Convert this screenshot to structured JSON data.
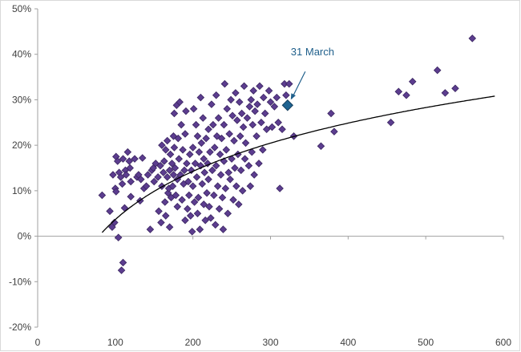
{
  "chart_data": {
    "type": "scatter",
    "title": "",
    "xlabel": "",
    "ylabel": "",
    "xlim": [
      0,
      600
    ],
    "ylim": [
      -20,
      50
    ],
    "x_ticks": [
      0,
      100,
      200,
      300,
      400,
      500,
      600
    ],
    "y_ticks": [
      -20,
      -10,
      0,
      10,
      20,
      30,
      40,
      50
    ],
    "x_tick_labels": [
      "0",
      "100",
      "200",
      "300",
      "400",
      "500",
      "600"
    ],
    "y_tick_labels": [
      "-20%",
      "-10%",
      "0%",
      "10%",
      "20%",
      "30%",
      "40%",
      "50%"
    ],
    "grid": false,
    "legend": "none",
    "colors": {
      "points": "#5c3d8f",
      "point_stroke": "#3a2560",
      "highlight": "#1f6391",
      "trendline": "#000000",
      "annotation": "#1f5f8b",
      "axis": "#a0a0a0"
    },
    "series": [
      {
        "points": [
          [
            83,
            9
          ],
          [
            93,
            5.5
          ],
          [
            96,
            2
          ],
          [
            97,
            13.5
          ],
          [
            99,
            3
          ],
          [
            100,
            10.5
          ],
          [
            101,
            9.8
          ],
          [
            101,
            17.5
          ],
          [
            103,
            16.5
          ],
          [
            104,
            -0.3
          ],
          [
            105,
            14
          ],
          [
            107,
            13
          ],
          [
            108,
            -7.5
          ],
          [
            109,
            11.5
          ],
          [
            110,
            -5.8
          ],
          [
            110,
            17
          ],
          [
            112,
            6.2
          ],
          [
            113,
            14.5
          ],
          [
            114,
            13.5
          ],
          [
            116,
            18.5
          ],
          [
            118,
            16.5
          ],
          [
            119,
            15
          ],
          [
            120,
            8.7
          ],
          [
            120,
            12
          ],
          [
            125,
            17
          ],
          [
            128,
            13
          ],
          [
            130,
            13.5
          ],
          [
            132,
            7.8
          ],
          [
            133,
            12.5
          ],
          [
            135,
            17.2
          ],
          [
            137,
            10.5
          ],
          [
            140,
            11
          ],
          [
            142,
            13.5
          ],
          [
            145,
            1.5
          ],
          [
            147,
            14.5
          ],
          [
            149,
            15
          ],
          [
            150,
            12
          ],
          [
            152,
            16
          ],
          [
            155,
            13
          ],
          [
            156,
            5.5
          ],
          [
            158,
            15.5
          ],
          [
            159,
            3
          ],
          [
            160,
            20
          ],
          [
            160,
            11
          ],
          [
            162,
            14
          ],
          [
            163,
            16.5
          ],
          [
            164,
            7.5
          ],
          [
            165,
            19
          ],
          [
            165,
            4.5
          ],
          [
            167,
            21
          ],
          [
            167,
            13
          ],
          [
            168,
            9.5
          ],
          [
            169,
            10.5
          ],
          [
            170,
            2
          ],
          [
            170,
            14.5
          ],
          [
            171,
            18
          ],
          [
            172,
            8.5
          ],
          [
            173,
            16
          ],
          [
            174,
            11
          ],
          [
            175,
            13.5
          ],
          [
            175,
            22
          ],
          [
            176,
            19.5
          ],
          [
            176,
            27
          ],
          [
            177,
            15
          ],
          [
            178,
            9
          ],
          [
            179,
            28.8
          ],
          [
            180,
            12.5
          ],
          [
            180,
            6.5
          ],
          [
            181,
            21.5
          ],
          [
            182,
            17
          ],
          [
            183,
            29.5
          ],
          [
            184,
            13.5
          ],
          [
            185,
            24.5
          ],
          [
            186,
            8
          ],
          [
            187,
            19
          ],
          [
            188,
            11.5
          ],
          [
            189,
            14.5
          ],
          [
            190,
            3.5
          ],
          [
            190,
            22.5
          ],
          [
            191,
            27.5
          ],
          [
            192,
            16
          ],
          [
            193,
            6
          ],
          [
            194,
            12
          ],
          [
            195,
            9
          ],
          [
            196,
            18
          ],
          [
            197,
            4.5
          ],
          [
            198,
            14.5
          ],
          [
            199,
            1
          ],
          [
            200,
            19.5
          ],
          [
            200,
            11
          ],
          [
            201,
            28
          ],
          [
            202,
            7.5
          ],
          [
            203,
            16
          ],
          [
            204,
            24.5
          ],
          [
            205,
            13
          ],
          [
            206,
            5
          ],
          [
            206,
            22
          ],
          [
            207,
            8.5
          ],
          [
            208,
            18.5
          ],
          [
            209,
            1.5
          ],
          [
            210,
            15.5
          ],
          [
            210,
            30.5
          ],
          [
            211,
            20.5
          ],
          [
            212,
            11.5
          ],
          [
            213,
            26
          ],
          [
            214,
            7
          ],
          [
            214,
            17
          ],
          [
            215,
            14
          ],
          [
            216,
            3.5
          ],
          [
            217,
            21.5
          ],
          [
            218,
            9.5
          ],
          [
            219,
            16
          ],
          [
            220,
            23.5
          ],
          [
            220,
            12.5
          ],
          [
            221,
            6.5
          ],
          [
            222,
            18.5
          ],
          [
            223,
            4
          ],
          [
            224,
            29
          ],
          [
            225,
            14.5
          ],
          [
            226,
            24.5
          ],
          [
            227,
            9
          ],
          [
            228,
            19.5
          ],
          [
            229,
            2.5
          ],
          [
            230,
            15.5
          ],
          [
            230,
            31
          ],
          [
            231,
            22
          ],
          [
            232,
            11
          ],
          [
            233,
            26
          ],
          [
            234,
            6
          ],
          [
            235,
            18
          ],
          [
            236,
            13.5
          ],
          [
            237,
            21.5
          ],
          [
            238,
            8.5
          ],
          [
            239,
            1.5
          ],
          [
            240,
            16.5
          ],
          [
            240,
            24.5
          ],
          [
            241,
            33.5
          ],
          [
            242,
            10.5
          ],
          [
            243,
            19
          ],
          [
            244,
            28
          ],
          [
            245,
            5
          ],
          [
            246,
            14
          ],
          [
            247,
            22.5
          ],
          [
            248,
            12.5
          ],
          [
            249,
            30
          ],
          [
            250,
            17
          ],
          [
            251,
            26.5
          ],
          [
            252,
            8
          ],
          [
            253,
            21
          ],
          [
            254,
            15
          ],
          [
            255,
            31.5
          ],
          [
            256,
            11
          ],
          [
            257,
            25.5
          ],
          [
            258,
            18
          ],
          [
            259,
            7
          ],
          [
            260,
            29.5
          ],
          [
            261,
            22
          ],
          [
            262,
            14.5
          ],
          [
            263,
            27
          ],
          [
            264,
            10
          ],
          [
            265,
            24
          ],
          [
            266,
            33
          ],
          [
            267,
            17
          ],
          [
            268,
            20.5
          ],
          [
            270,
            26
          ],
          [
            272,
            15.5
          ],
          [
            273,
            28.5
          ],
          [
            274,
            11
          ],
          [
            275,
            30
          ],
          [
            276,
            18.5
          ],
          [
            277,
            24.5
          ],
          [
            278,
            32
          ],
          [
            279,
            13.5
          ],
          [
            280,
            27.5
          ],
          [
            282,
            22
          ],
          [
            283,
            29
          ],
          [
            285,
            16
          ],
          [
            286,
            33
          ],
          [
            288,
            25
          ],
          [
            290,
            19
          ],
          [
            291,
            30.5
          ],
          [
            293,
            27
          ],
          [
            295,
            23.5
          ],
          [
            298,
            32
          ],
          [
            300,
            29.5
          ],
          [
            302,
            24
          ],
          [
            305,
            28.5
          ],
          [
            308,
            30.5
          ],
          [
            310,
            25
          ],
          [
            312,
            10.5
          ],
          [
            315,
            23.5
          ],
          [
            318,
            33.5
          ],
          [
            320,
            31
          ],
          [
            324,
            33.5
          ],
          [
            330,
            22
          ],
          [
            365,
            19.8
          ],
          [
            378,
            27
          ],
          [
            382,
            23
          ],
          [
            455,
            25
          ],
          [
            465,
            31.8
          ],
          [
            475,
            31
          ],
          [
            483,
            34
          ],
          [
            515,
            36.5
          ],
          [
            525,
            31.5
          ],
          [
            538,
            32.5
          ],
          [
            560,
            43.5
          ]
        ]
      }
    ],
    "highlight": {
      "x": 322,
      "y": 28.8
    },
    "annotation": {
      "text": "31 March"
    },
    "trendline": {
      "type": "log",
      "x_start": 83,
      "x_end": 590,
      "a": -66.8,
      "b": 15.3
    }
  }
}
